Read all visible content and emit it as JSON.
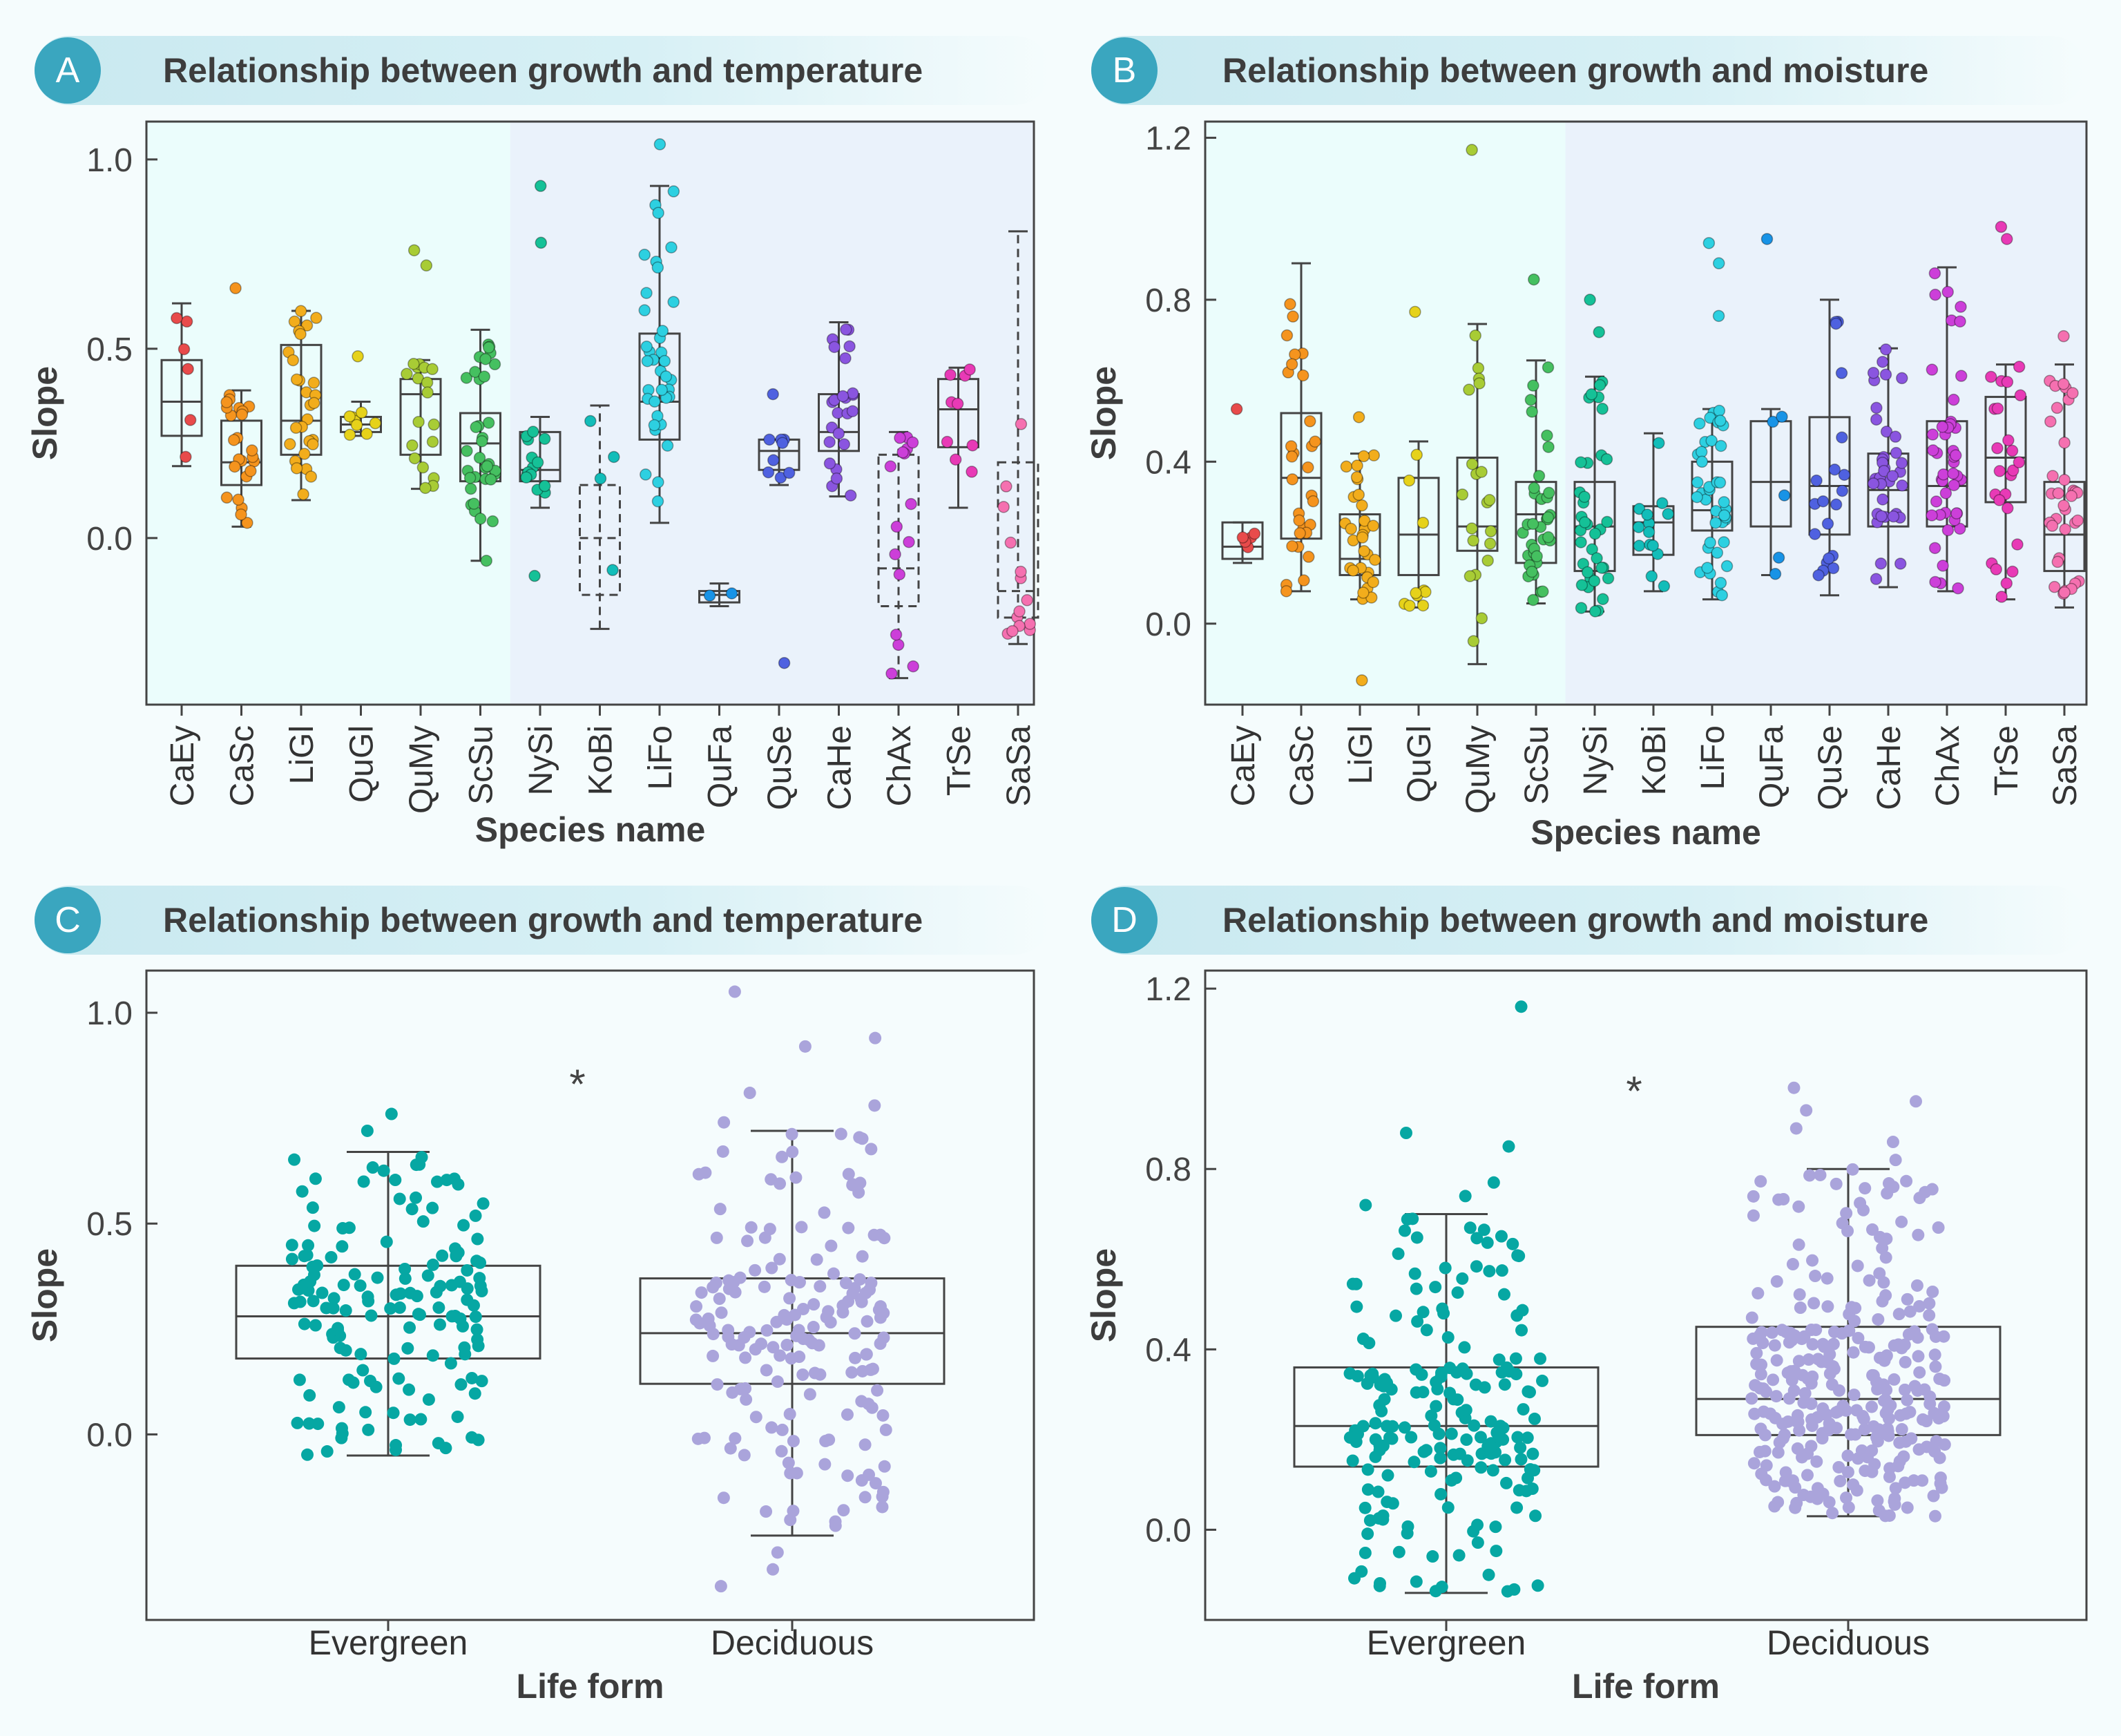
{
  "panels": [
    {
      "letter": "A",
      "title": "Relationship between growth and temperature"
    },
    {
      "letter": "B",
      "title": "Relationship between growth and moisture"
    },
    {
      "letter": "C",
      "title": "Relationship between growth and temperature"
    },
    {
      "letter": "D",
      "title": "Relationship between growth and moisture"
    }
  ],
  "colors": {
    "evergreen_bg": "#ebfdfc",
    "deciduous_bg": "#eaf2fb",
    "evergreen_points": "#06a7a3",
    "deciduous_points": "#aaa4db",
    "box_stroke": "#444444"
  },
  "chart_data": [
    {
      "id": "A",
      "type": "box",
      "xlabel": "Species name",
      "ylabel": "Slope",
      "ylim": [
        -0.44,
        1.1
      ],
      "yticks": [
        0.0,
        0.5,
        1.0
      ],
      "yticklabels": [
        "0.0",
        "0.5",
        "1.0"
      ],
      "shaded_groups": [
        {
          "name": "",
          "from": 0,
          "to": 5
        },
        {
          "name": "",
          "from": 6,
          "to": 14
        }
      ],
      "categories": [
        "CaEy",
        "CaSc",
        "LiGl",
        "QuGl",
        "QuMy",
        "ScSu",
        "NySi",
        "KoBi",
        "LiFo",
        "QuFa",
        "QuSe",
        "CaHe",
        "ChAx",
        "TrSe",
        "SaSa"
      ],
      "colors": [
        "#e84b4b",
        "#f5941e",
        "#f2ad1c",
        "#e6d21a",
        "#a8cc35",
        "#45c060",
        "#15c197",
        "#12bdb9",
        "#2dd0e1",
        "#1893e6",
        "#4f61e0",
        "#8a55e0",
        "#cc3fd9",
        "#e83ab6",
        "#f570b0"
      ],
      "dashed": [
        false,
        false,
        false,
        false,
        false,
        false,
        false,
        true,
        false,
        false,
        false,
        false,
        true,
        false,
        true
      ],
      "box": [
        {
          "min": 0.19,
          "q1": 0.27,
          "median": 0.36,
          "q3": 0.47,
          "max": 0.62,
          "n": 6
        },
        {
          "min": 0.03,
          "q1": 0.14,
          "median": 0.2,
          "q3": 0.31,
          "max": 0.39,
          "n": 24
        },
        {
          "min": 0.1,
          "q1": 0.22,
          "median": 0.31,
          "q3": 0.51,
          "max": 0.6,
          "n": 28
        },
        {
          "min": 0.27,
          "q1": 0.28,
          "median": 0.3,
          "q3": 0.32,
          "max": 0.36,
          "n": 8
        },
        {
          "min": 0.13,
          "q1": 0.22,
          "median": 0.38,
          "q3": 0.42,
          "max": 0.47,
          "n": 18
        },
        {
          "min": -0.06,
          "q1": 0.15,
          "median": 0.25,
          "q3": 0.33,
          "max": 0.55,
          "n": 34
        },
        {
          "min": 0.08,
          "q1": 0.15,
          "median": 0.18,
          "q3": 0.28,
          "max": 0.32,
          "n": 14
        },
        {
          "min": -0.24,
          "q1": -0.15,
          "median": 0.0,
          "q3": 0.14,
          "max": 0.35,
          "n": 4
        },
        {
          "min": 0.04,
          "q1": 0.26,
          "median": 0.36,
          "q3": 0.54,
          "max": 0.93,
          "n": 36
        },
        {
          "min": -0.18,
          "q1": -0.17,
          "median": -0.15,
          "q3": -0.14,
          "max": -0.12,
          "n": 2
        },
        {
          "min": 0.14,
          "q1": 0.18,
          "median": 0.23,
          "q3": 0.26,
          "max": 0.26,
          "n": 8
        },
        {
          "min": 0.11,
          "q1": 0.23,
          "median": 0.28,
          "q3": 0.38,
          "max": 0.57,
          "n": 24
        },
        {
          "min": -0.37,
          "q1": -0.18,
          "median": -0.08,
          "q3": 0.22,
          "max": 0.28,
          "n": 16
        },
        {
          "min": 0.08,
          "q1": 0.24,
          "median": 0.34,
          "q3": 0.42,
          "max": 0.45,
          "n": 9
        },
        {
          "min": -0.28,
          "q1": -0.21,
          "median": -0.14,
          "q3": 0.2,
          "max": 0.81,
          "n": 14
        }
      ],
      "outliers": [
        {
          "cat": 5,
          "y": -0.06
        },
        {
          "cat": 6,
          "y": 0.93
        },
        {
          "cat": 6,
          "y": 0.78
        },
        {
          "cat": 6,
          "y": -0.1
        },
        {
          "cat": 8,
          "y": 1.04
        },
        {
          "cat": 4,
          "y": 0.76
        },
        {
          "cat": 4,
          "y": 0.72
        },
        {
          "cat": 1,
          "y": 0.66
        },
        {
          "cat": 3,
          "y": 0.48
        },
        {
          "cat": 10,
          "y": 0.38
        },
        {
          "cat": 10,
          "y": -0.33
        }
      ]
    },
    {
      "id": "B",
      "type": "box",
      "xlabel": "Species name",
      "ylabel": "Slope",
      "ylim": [
        -0.2,
        1.24
      ],
      "yticks": [
        0.0,
        0.4,
        0.8,
        1.2
      ],
      "yticklabels": [
        "0.0",
        "0.4",
        "0.8",
        "1.2"
      ],
      "categories": [
        "CaEy",
        "CaSc",
        "LiGl",
        "QuGl",
        "QuMy",
        "ScSu",
        "NySi",
        "KoBi",
        "LiFo",
        "QuFa",
        "QuSe",
        "CaHe",
        "ChAx",
        "TrSe",
        "SaSa"
      ],
      "colors": [
        "#e84b4b",
        "#f5941e",
        "#f2ad1c",
        "#e6d21a",
        "#a8cc35",
        "#45c060",
        "#15c197",
        "#12bdb9",
        "#2dd0e1",
        "#1893e6",
        "#4f61e0",
        "#8a55e0",
        "#cc3fd9",
        "#e83ab6",
        "#f570b0"
      ],
      "box": [
        {
          "min": 0.15,
          "q1": 0.16,
          "median": 0.19,
          "q3": 0.25,
          "max": 0.25,
          "n": 5
        },
        {
          "min": 0.08,
          "q1": 0.21,
          "median": 0.36,
          "q3": 0.52,
          "max": 0.89,
          "n": 30
        },
        {
          "min": 0.06,
          "q1": 0.12,
          "median": 0.16,
          "q3": 0.27,
          "max": 0.42,
          "n": 30
        },
        {
          "min": 0.04,
          "q1": 0.12,
          "median": 0.22,
          "q3": 0.36,
          "max": 0.45,
          "n": 10
        },
        {
          "min": -0.1,
          "q1": 0.18,
          "median": 0.24,
          "q3": 0.41,
          "max": 0.74,
          "n": 20
        },
        {
          "min": 0.05,
          "q1": 0.15,
          "median": 0.27,
          "q3": 0.35,
          "max": 0.65,
          "n": 36
        },
        {
          "min": 0.03,
          "q1": 0.13,
          "median": 0.24,
          "q3": 0.35,
          "max": 0.61,
          "n": 36
        },
        {
          "min": 0.08,
          "q1": 0.17,
          "median": 0.25,
          "q3": 0.29,
          "max": 0.47,
          "n": 14
        },
        {
          "min": 0.06,
          "q1": 0.23,
          "median": 0.28,
          "q3": 0.4,
          "max": 0.53,
          "n": 40
        },
        {
          "min": 0.12,
          "q1": 0.24,
          "median": 0.35,
          "q3": 0.5,
          "max": 0.53,
          "n": 5
        },
        {
          "min": 0.07,
          "q1": 0.22,
          "median": 0.34,
          "q3": 0.51,
          "max": 0.8,
          "n": 20
        },
        {
          "min": 0.09,
          "q1": 0.24,
          "median": 0.33,
          "q3": 0.42,
          "max": 0.68,
          "n": 36
        },
        {
          "min": 0.08,
          "q1": 0.24,
          "median": 0.34,
          "q3": 0.5,
          "max": 0.88,
          "n": 44
        },
        {
          "min": 0.06,
          "q1": 0.3,
          "median": 0.41,
          "q3": 0.56,
          "max": 0.64,
          "n": 24
        },
        {
          "min": 0.04,
          "q1": 0.13,
          "median": 0.22,
          "q3": 0.35,
          "max": 0.64,
          "n": 34
        }
      ],
      "outliers": [
        {
          "cat": 0,
          "y": 0.53
        },
        {
          "cat": 2,
          "y": -0.14
        },
        {
          "cat": 2,
          "y": 0.51
        },
        {
          "cat": 3,
          "y": 0.77
        },
        {
          "cat": 4,
          "y": 1.17
        },
        {
          "cat": 5,
          "y": 0.85
        },
        {
          "cat": 6,
          "y": 0.8
        },
        {
          "cat": 6,
          "y": 0.72
        },
        {
          "cat": 8,
          "y": 0.89
        },
        {
          "cat": 8,
          "y": 0.94
        },
        {
          "cat": 8,
          "y": 0.76
        },
        {
          "cat": 9,
          "y": 0.95
        },
        {
          "cat": 13,
          "y": 0.95
        },
        {
          "cat": 13,
          "y": 0.98
        },
        {
          "cat": 14,
          "y": 0.71
        }
      ]
    },
    {
      "id": "C",
      "type": "box",
      "xlabel": "Life form",
      "ylabel": "Slope",
      "ylim": [
        -0.44,
        1.1
      ],
      "yticks": [
        0.0,
        0.5,
        1.0
      ],
      "yticklabels": [
        "0.0",
        "0.5",
        "1.0"
      ],
      "annotation": "*",
      "categories": [
        "Evergreen",
        "Deciduous"
      ],
      "colors": [
        "#06a7a3",
        "#aaa4db"
      ],
      "box": [
        {
          "min": -0.05,
          "q1": 0.18,
          "median": 0.28,
          "q3": 0.4,
          "max": 0.67,
          "n": 150
        },
        {
          "min": -0.24,
          "q1": 0.12,
          "median": 0.24,
          "q3": 0.37,
          "max": 0.72,
          "n": 170
        }
      ],
      "outliers": [
        {
          "cat": 0,
          "y": 0.76
        },
        {
          "cat": 0,
          "y": 0.72
        },
        {
          "cat": 1,
          "y": 0.74
        },
        {
          "cat": 1,
          "y": 0.78
        },
        {
          "cat": 1,
          "y": 0.81
        },
        {
          "cat": 1,
          "y": 0.92
        },
        {
          "cat": 1,
          "y": 0.94
        },
        {
          "cat": 1,
          "y": 1.05
        },
        {
          "cat": 1,
          "y": -0.32
        },
        {
          "cat": 1,
          "y": -0.36
        },
        {
          "cat": 1,
          "y": -0.28
        }
      ]
    },
    {
      "id": "D",
      "type": "box",
      "xlabel": "Life form",
      "ylabel": "Slope",
      "ylim": [
        -0.2,
        1.24
      ],
      "yticks": [
        0.0,
        0.4,
        0.8,
        1.2
      ],
      "yticklabels": [
        "0.0",
        "0.4",
        "0.8",
        "1.2"
      ],
      "annotation": "*",
      "categories": [
        "Evergreen",
        "Deciduous"
      ],
      "colors": [
        "#06a7a3",
        "#aaa4db"
      ],
      "box": [
        {
          "min": -0.14,
          "q1": 0.14,
          "median": 0.23,
          "q3": 0.36,
          "max": 0.7,
          "n": 190
        },
        {
          "min": 0.03,
          "q1": 0.21,
          "median": 0.29,
          "q3": 0.45,
          "max": 0.8,
          "n": 300
        }
      ],
      "outliers": [
        {
          "cat": 0,
          "y": 1.16
        },
        {
          "cat": 0,
          "y": 0.88
        },
        {
          "cat": 0,
          "y": 0.85
        },
        {
          "cat": 0,
          "y": 0.77
        },
        {
          "cat": 0,
          "y": 0.74
        },
        {
          "cat": 0,
          "y": 0.72
        },
        {
          "cat": 0,
          "y": -0.1
        },
        {
          "cat": 1,
          "y": 0.82
        },
        {
          "cat": 1,
          "y": 0.86
        },
        {
          "cat": 1,
          "y": 0.89
        },
        {
          "cat": 1,
          "y": 0.93
        },
        {
          "cat": 1,
          "y": 0.95
        },
        {
          "cat": 1,
          "y": 0.98
        }
      ]
    }
  ]
}
